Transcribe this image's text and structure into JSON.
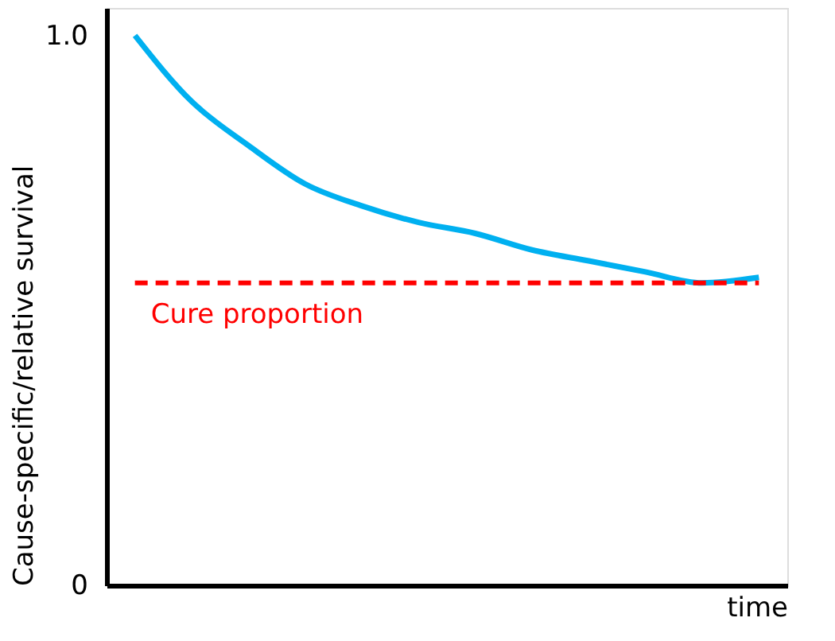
{
  "chart_data": {
    "type": "line",
    "ylabel": "Cause-specific/relative survival",
    "xlabel": "time",
    "categories": [
      null,
      null,
      null,
      null,
      null,
      null,
      null,
      null,
      null,
      null,
      null,
      null
    ],
    "series": [
      {
        "color": "#00b0f0",
        "values": [
          1.0,
          0.88,
          0.8,
          0.73,
          0.69,
          0.66,
          0.64,
          0.61,
          0.59,
          0.57,
          0.55,
          0.56
        ]
      }
    ],
    "ylim": [
      0,
      1.05
    ],
    "yticks": [
      0,
      {
        "value": 1,
        "label": "1.0"
      }
    ],
    "ref_lines": [
      {
        "axis": "y",
        "value": 0.55,
        "label": "Cure proportion",
        "color": "#ff0000",
        "line_style": "dashed"
      }
    ],
    "grid": false,
    "marker": "none",
    "line_style": "solid"
  }
}
